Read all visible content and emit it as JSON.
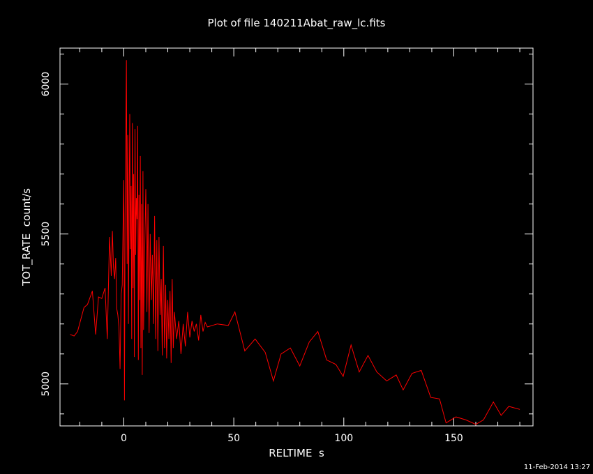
{
  "chart_data": {
    "type": "line",
    "title": "Plot of file 140211Abat_raw_lc.fits",
    "xlabel": "RELTIME  s",
    "ylabel": "TOT_RATE  count/s",
    "timestamp": "11-Feb-2014 13:27",
    "xlim": [
      -29,
      186
    ],
    "ylim": [
      4860,
      6120
    ],
    "x_major_ticks": [
      0,
      50,
      100,
      150
    ],
    "x_minor_step": 10,
    "y_major_ticks": [
      5000,
      5500,
      6000
    ],
    "y_minor_step": 100,
    "grid": false,
    "legend": "none",
    "line_color": "#ff0000",
    "axes_color": "#ffffff",
    "background": "#000000",
    "series": [
      {
        "x": [
          -24.4,
          -22.6,
          -21.0,
          -18.1,
          -16.5,
          -14.3,
          -12.8,
          -11.5,
          -10.0,
          -8.5,
          -7.5,
          -6.5,
          -5.7,
          -5.2,
          -4.7,
          -4.2,
          -3.7,
          -3.2,
          -2.7,
          -2.2,
          -1.7,
          -1.2,
          -0.7,
          -0.2,
          0.0,
          0.3,
          0.6,
          0.9,
          1.2,
          1.5,
          1.8,
          2.1,
          2.4,
          2.7,
          3.0,
          3.3,
          3.6,
          3.9,
          4.2,
          4.5,
          4.8,
          5.1,
          5.4,
          5.7,
          6.0,
          6.3,
          6.6,
          6.9,
          7.2,
          7.5,
          7.8,
          8.1,
          8.4,
          8.7,
          9.0,
          9.5,
          10.0,
          10.5,
          11.0,
          11.5,
          12.0,
          12.5,
          13.0,
          13.5,
          14.0,
          14.5,
          15.0,
          15.5,
          16.0,
          16.5,
          17.0,
          17.5,
          18.0,
          18.5,
          19.0,
          19.5,
          20.0,
          20.5,
          21.0,
          21.5,
          22.0,
          22.5,
          23.0,
          24.0,
          25.0,
          26.0,
          27.0,
          28.0,
          29.0,
          30.0,
          31.0,
          32.0,
          33.0,
          34.0,
          35.0,
          36.0,
          37.0,
          38.0,
          42.5,
          47.5,
          50.5,
          55.0,
          59.7,
          64.3,
          68.0,
          71.5,
          75.7,
          80.0,
          84.3,
          88.2,
          92.2,
          96.4,
          99.7,
          103.3,
          107.0,
          111.0,
          115.0,
          119.5,
          123.8,
          127.0,
          131.0,
          135.2,
          139.5,
          143.5,
          146.5,
          151.0,
          155.5,
          160.0,
          163.5,
          168.0,
          171.5,
          175.0,
          180.0
        ],
        "y": [
          5165,
          5160,
          5175,
          5255,
          5265,
          5310,
          5165,
          5290,
          5285,
          5320,
          5150,
          5490,
          5360,
          5510,
          5390,
          5350,
          5420,
          5250,
          5230,
          5190,
          5050,
          5300,
          5330,
          5590,
          5680,
          4945,
          5550,
          5820,
          6080,
          5400,
          5830,
          5200,
          5590,
          5900,
          5450,
          5660,
          5150,
          5870,
          5320,
          5700,
          5090,
          5850,
          5430,
          5620,
          5550,
          5860,
          5080,
          5630,
          5280,
          5760,
          5120,
          5600,
          5030,
          5710,
          5180,
          5450,
          5650,
          5240,
          5600,
          5170,
          5500,
          5280,
          5430,
          5200,
          5560,
          5150,
          5480,
          5110,
          5490,
          5230,
          5350,
          5095,
          5460,
          5120,
          5330,
          5085,
          5280,
          5150,
          5310,
          5070,
          5350,
          5120,
          5240,
          5150,
          5210,
          5100,
          5200,
          5125,
          5240,
          5155,
          5210,
          5175,
          5200,
          5145,
          5230,
          5175,
          5205,
          5190,
          5200,
          5195,
          5240,
          5110,
          5150,
          5105,
          5010,
          5100,
          5120,
          5060,
          5140,
          5175,
          5080,
          5065,
          5025,
          5130,
          5040,
          5095,
          5040,
          5010,
          5030,
          4980,
          5035,
          5045,
          4955,
          4950,
          4870,
          4890,
          4880,
          4865,
          4880,
          4940,
          4895,
          4925,
          4915
        ]
      }
    ]
  }
}
